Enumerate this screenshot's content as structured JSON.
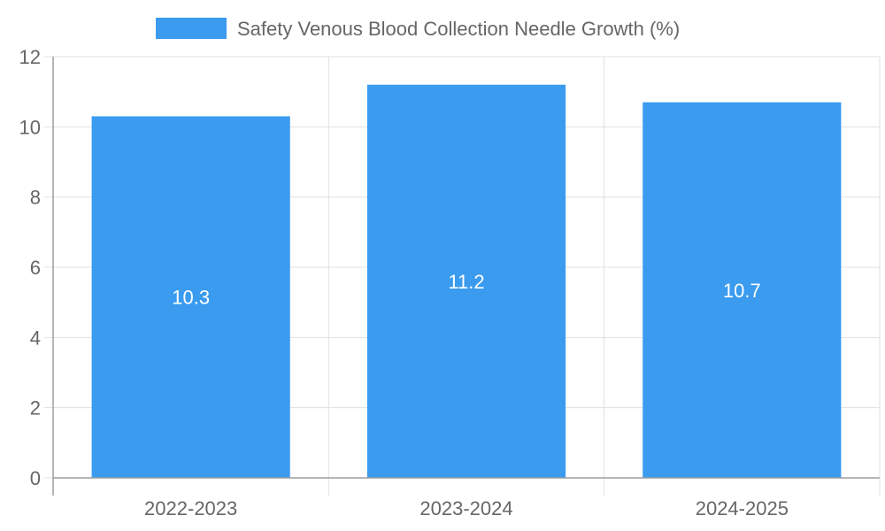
{
  "chart_data": {
    "type": "bar",
    "categories": [
      "2022-2023",
      "2023-2024",
      "2024-2025"
    ],
    "series": [
      {
        "name": "Safety Venous Blood Collection Needle Growth (%)",
        "values": [
          10.3,
          11.2,
          10.7
        ],
        "color": "#3a9bef"
      }
    ],
    "data_labels": [
      "10.3",
      "11.2",
      "10.7"
    ],
    "y_ticks": [
      "0",
      "2",
      "4",
      "6",
      "8",
      "10",
      "12"
    ],
    "ylim": [
      0,
      12
    ],
    "grid": true,
    "legend_position": "top"
  }
}
